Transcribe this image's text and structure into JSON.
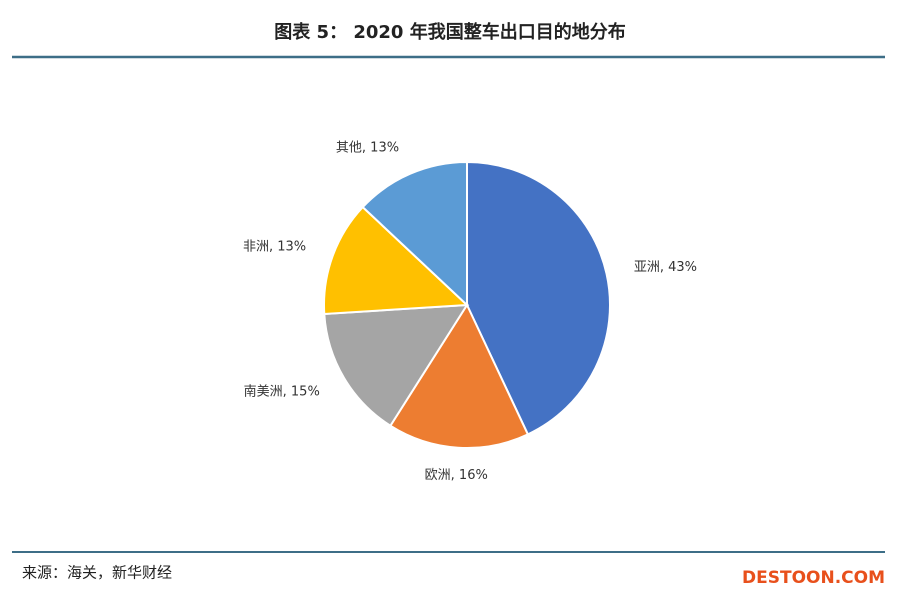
{
  "title": "图表 5： 2020 年我国整车出口目的地分布",
  "chart_data": {
    "type": "pie",
    "values": [
      43,
      16,
      15,
      13,
      13
    ],
    "value_labels": [
      "亚洲, 43%",
      "欧洲, 16%",
      "南美洲, 15%",
      "非洲, 13%",
      "其他, 13%"
    ],
    "colors": [
      "#4472c4",
      "#ed7d31",
      "#a5a5a5",
      "#ffc000",
      "#5b9bd5"
    ]
  },
  "source": "来源：海关，新华财经",
  "watermark": "DESTOON.COM"
}
